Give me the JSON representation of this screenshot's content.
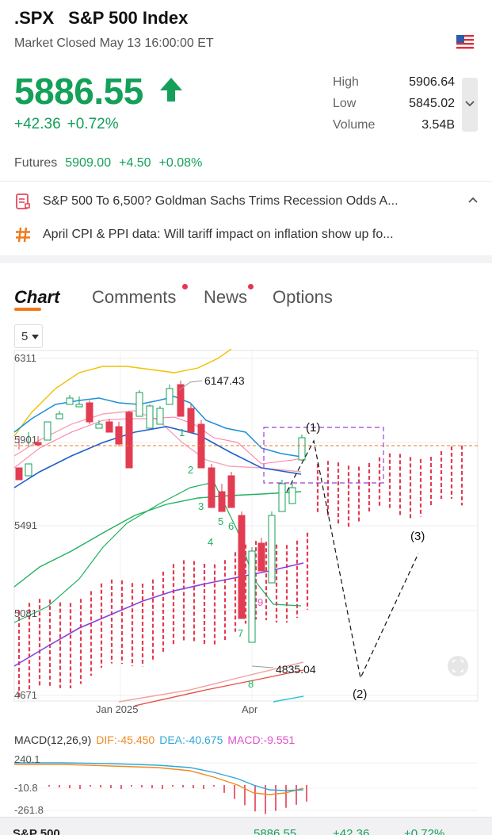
{
  "header": {
    "symbol": ".SPX",
    "name": "S&P 500 Index",
    "status": "Market Closed May 13 16:00:00 ET",
    "flag_icon": "us-flag-icon"
  },
  "quote": {
    "price": "5886.55",
    "direction_icon": "arrow-up-icon",
    "change": "+42.36",
    "change_pct": "+0.72%",
    "up_color": "#15a05a"
  },
  "stats": [
    {
      "label": "High",
      "value": "5906.64"
    },
    {
      "label": "Low",
      "value": "5845.02"
    },
    {
      "label": "Volume",
      "value": "3.54B"
    }
  ],
  "futures": {
    "label": "Futures",
    "price": "5909.00",
    "change": "+4.50",
    "change_pct": "+0.08%"
  },
  "news": [
    {
      "icon": "document-icon",
      "text": "S&P 500 To 6,500? Goldman Sachs Trims Recession Odds A..."
    },
    {
      "icon": "hashtag-icon",
      "text": "April CPI & PPI data: Will tariff impact on inflation show up fo..."
    }
  ],
  "tabs": [
    {
      "label": "Chart",
      "active": true,
      "dot": false
    },
    {
      "label": "Comments",
      "active": false,
      "dot": true
    },
    {
      "label": "News",
      "active": false,
      "dot": true
    },
    {
      "label": "Options",
      "active": false,
      "dot": false
    }
  ],
  "period": {
    "value": "5"
  },
  "chart": {
    "y_labels": [
      "6311",
      "5901",
      "5491",
      "5081",
      "4671"
    ],
    "x_labels": [
      "Jan 2025",
      "Apr"
    ],
    "high_label": "6147.43",
    "low_label": "4835.04",
    "wave_labels": [
      "(1)",
      "(2)",
      "(3)"
    ],
    "td_green": [
      "1",
      "2",
      "3",
      "4",
      "5",
      "6",
      "7",
      "8"
    ],
    "td_magenta": [
      "9"
    ],
    "reference_line": 5886.55
  },
  "macd": {
    "title": "MACD(12,26,9)",
    "dif": "DIF:-45.450",
    "dea": "DEA:-40.675",
    "macd": "MACD:-9.551",
    "y_labels": [
      "240.1",
      "-10.8",
      "-261.8"
    ]
  },
  "bottom_bar": {
    "name": "S&P 500",
    "price": "5886.55",
    "change": "+42.36",
    "change_pct": "+0.72%"
  }
}
